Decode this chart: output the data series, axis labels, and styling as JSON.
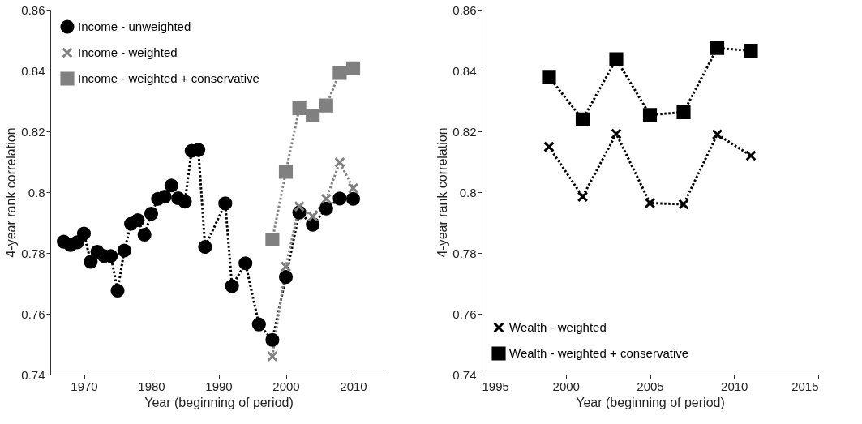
{
  "chart_data": [
    {
      "type": "line",
      "xlabel": "Year (beginning of period)",
      "ylabel": "4-year rank correlation",
      "xlim": [
        1965,
        2015
      ],
      "xticks": [
        1970,
        1980,
        1990,
        2000,
        2010
      ],
      "ylim": [
        0.74,
        0.86
      ],
      "yticks": [
        0.74,
        0.76,
        0.78,
        0.8,
        0.82,
        0.84,
        0.86
      ],
      "grid": false,
      "legend": "top left",
      "line_style": "dotted",
      "series": [
        {
          "name": "Income - unweighted",
          "color": "#000000",
          "marker": "circle",
          "x": [
            1967,
            1968,
            1969,
            1970,
            1971,
            1972,
            1973,
            1974,
            1975,
            1976,
            1977,
            1978,
            1979,
            1980,
            1981,
            1982,
            1983,
            1984,
            1985,
            1986,
            1987,
            1988,
            1991,
            1992,
            1994,
            1996,
            1998,
            2000,
            2002,
            2004,
            2006,
            2008,
            2010
          ],
          "values": [
            0.7837,
            0.7826,
            0.7835,
            0.7864,
            0.7771,
            0.7804,
            0.779,
            0.779,
            0.7676,
            0.7808,
            0.7896,
            0.7908,
            0.786,
            0.7929,
            0.7978,
            0.7985,
            0.8022,
            0.798,
            0.7969,
            0.8136,
            0.8139,
            0.782,
            0.7963,
            0.7691,
            0.7766,
            0.7565,
            0.7514,
            0.7721,
            0.7933,
            0.7893,
            0.7946,
            0.7979,
            0.7978
          ]
        },
        {
          "name": "Income - weighted",
          "color": "#808080",
          "marker": "cross",
          "x": [
            1998,
            2000,
            2002,
            2004,
            2006,
            2008,
            2010
          ],
          "values": [
            0.746,
            0.7755,
            0.7953,
            0.792,
            0.7978,
            0.8098,
            0.8013
          ]
        },
        {
          "name": "Income - weighted + conservative",
          "color": "#808080",
          "marker": "square",
          "x": [
            1998,
            2000,
            2002,
            2004,
            2006,
            2008,
            2010
          ],
          "values": [
            0.7844,
            0.8067,
            0.8276,
            0.8252,
            0.8285,
            0.8392,
            0.8407
          ]
        }
      ]
    },
    {
      "type": "line",
      "xlabel": "Year (beginning of period)",
      "ylabel": "4-year rank correlation",
      "xlim": [
        1995,
        2015
      ],
      "xticks": [
        1995,
        2000,
        2005,
        2010,
        2015
      ],
      "ylim": [
        0.74,
        0.86
      ],
      "yticks": [
        0.74,
        0.76,
        0.78,
        0.8,
        0.82,
        0.84,
        0.86
      ],
      "grid": false,
      "legend": "bottom left",
      "line_style": "dotted",
      "series": [
        {
          "name": "Wealth - weighted",
          "color": "#000000",
          "marker": "cross",
          "x": [
            1999,
            2001,
            2003,
            2005,
            2007,
            2009,
            2011
          ],
          "values": [
            0.8149,
            0.7985,
            0.8192,
            0.7964,
            0.796,
            0.819,
            0.812
          ]
        },
        {
          "name": "Wealth - weighted + conservative",
          "color": "#000000",
          "marker": "square",
          "x": [
            1999,
            2001,
            2003,
            2005,
            2007,
            2009,
            2011
          ],
          "values": [
            0.8379,
            0.8239,
            0.8437,
            0.8254,
            0.8263,
            0.8474,
            0.8465
          ]
        }
      ]
    }
  ]
}
